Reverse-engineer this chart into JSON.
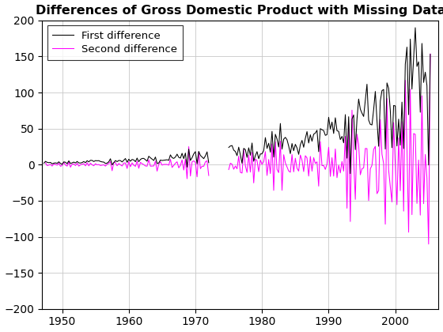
{
  "title": "Differences of Gross Domestic Product with Missing Data",
  "xlim": [
    1947.0,
    2006.5
  ],
  "ylim": [
    -200,
    200
  ],
  "yticks": [
    -200,
    -150,
    -100,
    -50,
    0,
    50,
    100,
    150,
    200
  ],
  "xticks": [
    1950,
    1960,
    1970,
    1980,
    1990,
    2000
  ],
  "line1_color": "#000000",
  "line2_color": "#ff00ff",
  "line1_label": "First difference",
  "line2_label": "Second difference",
  "line_width": 0.75,
  "background_color": "#ffffff",
  "grid_color": "#c8c8c8",
  "title_fontsize": 11.5,
  "tick_fontsize": 10,
  "legend_fontsize": 9.5
}
